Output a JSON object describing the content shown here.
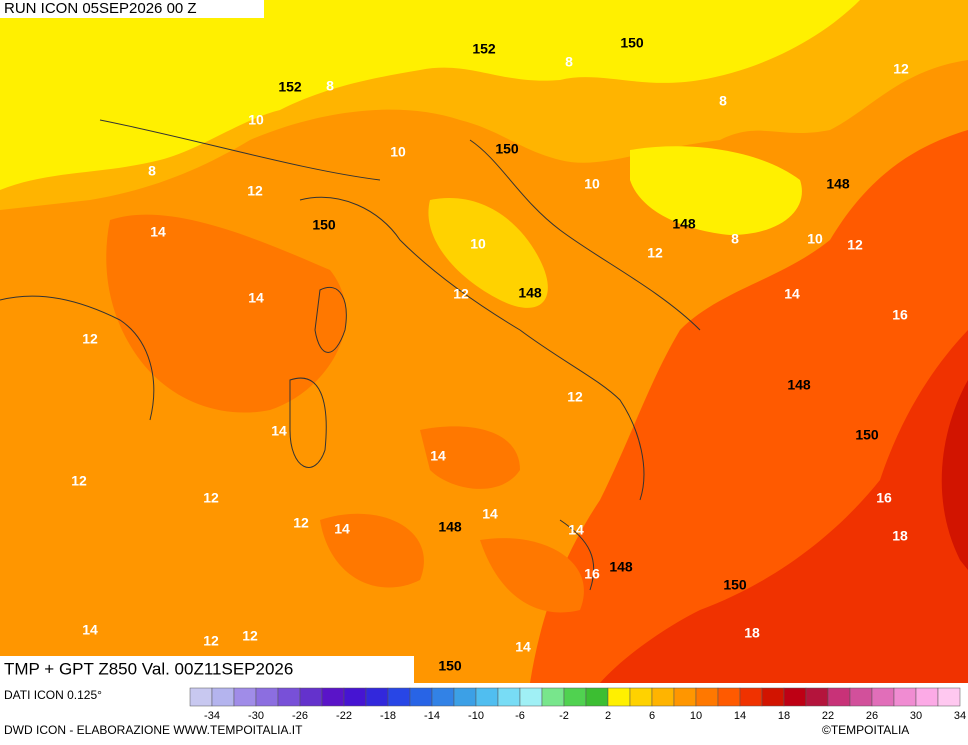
{
  "header": {
    "run": "RUN ICON 05SEP2026 00 Z",
    "field": "TMP + GPT Z850 Val. 00Z11SEP2026"
  },
  "map_labels": {
    "temperature": [
      8,
      12,
      8,
      8,
      10,
      10,
      8,
      12,
      10,
      14,
      8,
      10,
      12,
      10,
      12,
      14,
      12,
      14,
      12,
      16,
      12,
      14,
      14,
      12,
      12,
      12,
      14,
      14,
      14,
      16,
      18,
      16,
      14,
      12,
      12,
      14,
      18
    ],
    "geopotential": [
      152,
      150,
      152,
      150,
      148,
      150,
      148,
      148,
      148,
      150,
      148,
      148,
      150,
      150
    ]
  },
  "colorbar": {
    "colors": [
      "#c8c8f0",
      "#b4b4ee",
      "#a08ce8",
      "#8c6ee0",
      "#7850d8",
      "#6432cc",
      "#5a14c8",
      "#4614d2",
      "#3228dc",
      "#2846e6",
      "#2864e6",
      "#3282e6",
      "#3ca0e6",
      "#50bef0",
      "#78dcf5",
      "#a0f0f5",
      "#78e68c",
      "#50d250",
      "#3cbe32",
      "#fff000",
      "#ffd200",
      "#ffb400",
      "#ff9600",
      "#ff7800",
      "#ff5a00",
      "#f03200",
      "#d21400",
      "#be0014",
      "#b4143c",
      "#c83278",
      "#d2509b",
      "#e16eb9",
      "#f08cd2",
      "#fcaae6",
      "#ffc8f0"
    ],
    "labels": [
      -34,
      -30,
      -26,
      -22,
      -18,
      -14,
      -10,
      -6,
      -2,
      2,
      6,
      10,
      14,
      18,
      22,
      26,
      30,
      34
    ]
  },
  "footer": {
    "data": "DATI ICON 0.125°",
    "credit": "DWD ICON - ELABORAZIONE WWW.TEMPOITALIA.IT",
    "copyright": "©TEMPOITALIA"
  }
}
